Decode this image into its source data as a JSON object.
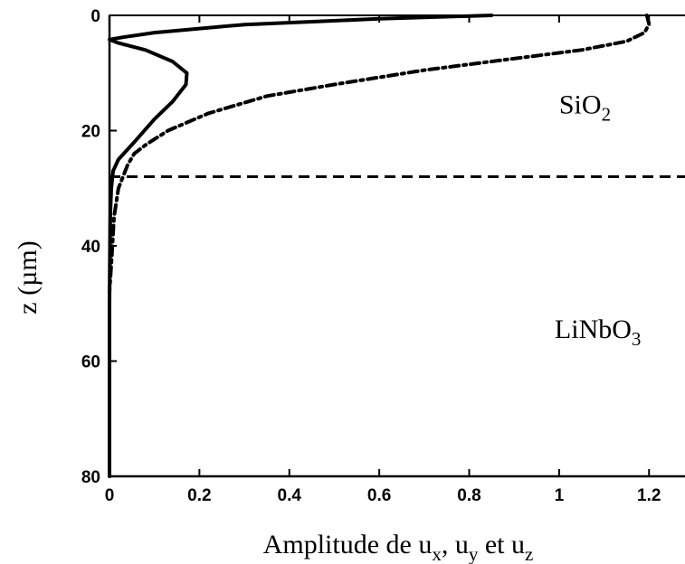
{
  "chart_data": {
    "type": "line",
    "title": "",
    "xlabel": {
      "parts": [
        {
          "text": "Amplitude de u",
          "sub": false
        },
        {
          "text": "x",
          "sub": true
        },
        {
          "text": ", u",
          "sub": false
        },
        {
          "text": "y",
          "sub": true
        },
        {
          "text": " et u",
          "sub": false
        },
        {
          "text": "z",
          "sub": true
        }
      ]
    },
    "ylabel": "z (µm)",
    "xlim": [
      0,
      1.28
    ],
    "ylim": [
      0,
      80
    ],
    "y_inverted": true,
    "x_ticks": [
      0,
      0.2,
      0.4,
      0.6,
      0.8,
      1,
      1.2
    ],
    "x_tick_labels": [
      "0",
      "0.2",
      "0.4",
      "0.6",
      "0.8",
      "1",
      "1.2"
    ],
    "y_ticks": [
      0,
      20,
      40,
      60,
      80
    ],
    "y_tick_labels": [
      "0",
      "20",
      "40",
      "60",
      "80"
    ],
    "grid": false,
    "legend": "none",
    "interface_depth": 28,
    "regions": [
      {
        "main": "SiO",
        "sub": "2",
        "x": 1.0,
        "z": 17
      },
      {
        "main": "LiNbO",
        "sub": "3",
        "x": 0.99,
        "z": 56
      }
    ],
    "series": [
      {
        "style": "solid",
        "x": [
          0.85,
          0.6,
          0.3,
          0.1,
          0.03,
          0.0,
          0.02,
          0.08,
          0.14,
          0.172,
          0.17,
          0.14,
          0.1,
          0.055,
          0.02,
          0.008,
          0.004,
          0.002,
          0.001,
          0.0,
          0.0
        ],
        "y": [
          0,
          0.6,
          1.6,
          3.0,
          3.8,
          4.2,
          4.8,
          6.0,
          8.0,
          10.0,
          12.0,
          15.0,
          18.0,
          22.0,
          25.0,
          27.0,
          30.0,
          34.0,
          40.0,
          50.0,
          80.0
        ]
      },
      {
        "style": "dashdot",
        "x": [
          1.195,
          1.2,
          1.19,
          1.15,
          1.05,
          0.9,
          0.7,
          0.5,
          0.35,
          0.22,
          0.13,
          0.08,
          0.055,
          0.04,
          0.02,
          0.01,
          0.005,
          0.0
        ],
        "y": [
          0,
          1.5,
          3.0,
          4.5,
          6.0,
          7.5,
          9.5,
          12.0,
          14.0,
          17.0,
          20.0,
          22.5,
          24.0,
          26.0,
          30.0,
          35.0,
          42.0,
          48.0
        ]
      },
      {
        "style": "dotted",
        "x": [
          0.0,
          0.0,
          0.0
        ],
        "y": [
          0,
          25,
          48
        ]
      }
    ]
  }
}
